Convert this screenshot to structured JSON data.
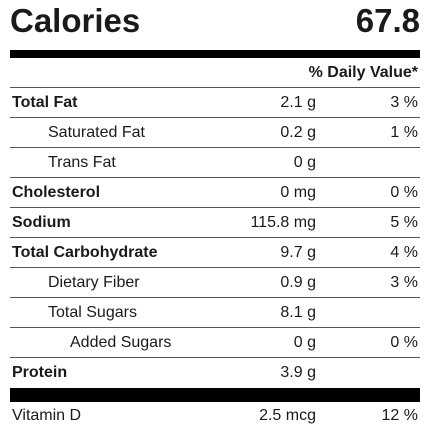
{
  "calories": {
    "label": "Calories",
    "value": "67.8"
  },
  "daily_value_header": "% Daily Value*",
  "nutrients": [
    {
      "name": "Total Fat",
      "amount": "2.1 g",
      "dv": "3 %"
    },
    {
      "name": "Saturated Fat",
      "amount": "0.2 g",
      "dv": "1 %"
    },
    {
      "name": "Trans Fat",
      "amount": "0 g",
      "dv": ""
    },
    {
      "name": "Cholesterol",
      "amount": "0 mg",
      "dv": "0 %"
    },
    {
      "name": "Sodium",
      "amount": "115.8 mg",
      "dv": "5 %"
    },
    {
      "name": "Total Carbohydrate",
      "amount": "9.7 g",
      "dv": "4 %"
    },
    {
      "name": "Dietary Fiber",
      "amount": "0.9 g",
      "dv": "3 %"
    },
    {
      "name": "Total Sugars",
      "amount": "8.1 g",
      "dv": ""
    },
    {
      "name": "Added Sugars",
      "amount": "0 g",
      "dv": "0 %"
    },
    {
      "name": "Protein",
      "amount": "3.9 g",
      "dv": ""
    }
  ],
  "vitamins": [
    {
      "name": "Vitamin D",
      "amount": "2.5 mcg",
      "dv": "12 %"
    }
  ]
}
